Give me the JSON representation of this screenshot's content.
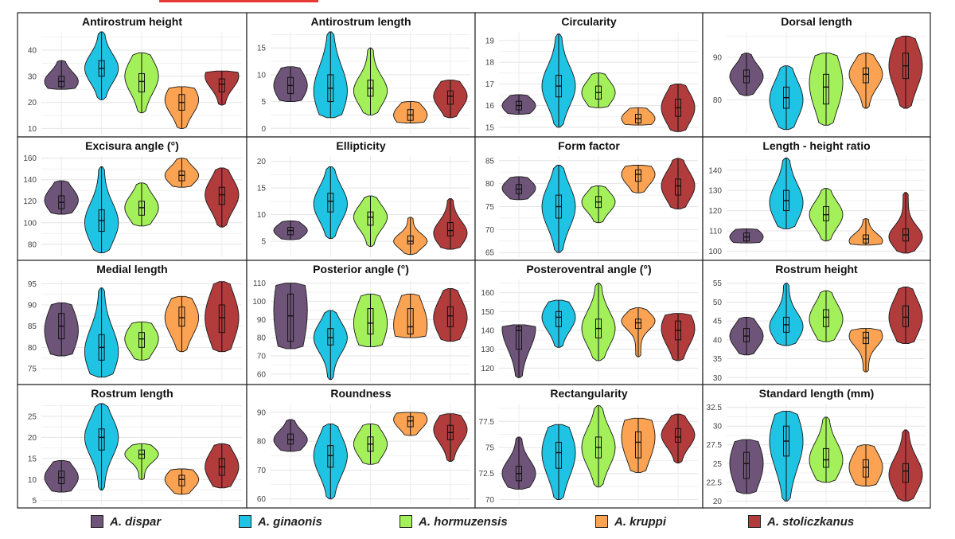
{
  "colors": {
    "A. dispar": "#6e5478",
    "A. ginaonis": "#1fc4e4",
    "A. hormuzensis": "#a3f05a",
    "A. kruppi": "#fba352",
    "A. stoliczkanus": "#b23b3c"
  },
  "legend": [
    {
      "label": "A. dispar",
      "color": "#6e5478"
    },
    {
      "label": "A. ginaonis",
      "color": "#1fc4e4"
    },
    {
      "label": "A. hormuzensis",
      "color": "#a3f05a"
    },
    {
      "label": "A. kruppi",
      "color": "#fba352"
    },
    {
      "label": "A. stoliczkanus",
      "color": "#b23b3c"
    }
  ],
  "chart_data": [
    {
      "type": "violin",
      "title": "Antirostrum height",
      "yticks": [
        10,
        20,
        30,
        40
      ],
      "ylim": [
        8,
        47
      ],
      "series": [
        {
          "name": "A. dispar",
          "min": 25,
          "max": 36,
          "q1": 26,
          "median": 28,
          "q3": 30,
          "mode": 28
        },
        {
          "name": "A. ginaonis",
          "min": 21,
          "max": 47,
          "q1": 30,
          "median": 33,
          "q3": 36,
          "mode": 33
        },
        {
          "name": "A. hormuzensis",
          "min": 16,
          "max": 39,
          "q1": 24,
          "median": 28,
          "q3": 31,
          "mode": 30
        },
        {
          "name": "A. kruppi",
          "min": 10,
          "max": 26,
          "q1": 17,
          "median": 20,
          "q3": 23,
          "mode": 21
        },
        {
          "name": "A. stoliczkanus",
          "min": 19,
          "max": 32,
          "q1": 24,
          "median": 27,
          "q3": 29,
          "mode": 30
        }
      ]
    },
    {
      "type": "violin",
      "title": "Antirostrum length",
      "yticks": [
        0,
        5,
        10,
        15
      ],
      "ylim": [
        -1,
        18
      ],
      "series": [
        {
          "name": "A. dispar",
          "min": 5,
          "max": 11.5,
          "q1": 6.5,
          "median": 8,
          "q3": 9.5,
          "mode": 8
        },
        {
          "name": "A. ginaonis",
          "min": 2,
          "max": 18,
          "q1": 5,
          "median": 7.5,
          "q3": 10,
          "mode": 7
        },
        {
          "name": "A. hormuzensis",
          "min": 2.5,
          "max": 15,
          "q1": 6,
          "median": 7.5,
          "q3": 9,
          "mode": 7
        },
        {
          "name": "A. kruppi",
          "min": 1,
          "max": 5,
          "q1": 1.5,
          "median": 2.5,
          "q3": 3.5,
          "mode": 2.5
        },
        {
          "name": "A. stoliczkanus",
          "min": 2,
          "max": 9,
          "q1": 4.5,
          "median": 6,
          "q3": 7,
          "mode": 6
        }
      ]
    },
    {
      "type": "violin",
      "title": "Circularity",
      "yticks": [
        15,
        16,
        17,
        18,
        19
      ],
      "ylim": [
        14.7,
        19.4
      ],
      "series": [
        {
          "name": "A. dispar",
          "min": 15.6,
          "max": 16.5,
          "q1": 15.8,
          "median": 16,
          "q3": 16.2,
          "mode": 16
        },
        {
          "name": "A. ginaonis",
          "min": 15,
          "max": 19.3,
          "q1": 16.4,
          "median": 16.9,
          "q3": 17.4,
          "mode": 16.9
        },
        {
          "name": "A. hormuzensis",
          "min": 15.9,
          "max": 17.5,
          "q1": 16.3,
          "median": 16.6,
          "q3": 16.9,
          "mode": 16.6
        },
        {
          "name": "A. kruppi",
          "min": 15.1,
          "max": 15.9,
          "q1": 15.2,
          "median": 15.4,
          "q3": 15.6,
          "mode": 15.4
        },
        {
          "name": "A. stoliczkanus",
          "min": 14.8,
          "max": 17,
          "q1": 15.5,
          "median": 15.9,
          "q3": 16.3,
          "mode": 15.9
        }
      ]
    },
    {
      "type": "violin",
      "title": "Dorsal length",
      "yticks": [
        80,
        90
      ],
      "ylim": [
        72,
        96
      ],
      "series": [
        {
          "name": "A. dispar",
          "min": 81,
          "max": 91,
          "q1": 84,
          "median": 85.5,
          "q3": 87,
          "mode": 85.5
        },
        {
          "name": "A. ginaonis",
          "min": 73,
          "max": 88,
          "q1": 78,
          "median": 80.5,
          "q3": 83,
          "mode": 80
        },
        {
          "name": "A. hormuzensis",
          "min": 74,
          "max": 91,
          "q1": 79,
          "median": 83,
          "q3": 86,
          "mode": 84
        },
        {
          "name": "A. kruppi",
          "min": 78,
          "max": 91,
          "q1": 84,
          "median": 86,
          "q3": 87.5,
          "mode": 86
        },
        {
          "name": "A. stoliczkanus",
          "min": 78,
          "max": 95,
          "q1": 85,
          "median": 88,
          "q3": 91,
          "mode": 88
        }
      ]
    },
    {
      "type": "violin",
      "title": "Excisura angle (°)",
      "yticks": [
        80,
        100,
        120,
        140,
        160
      ],
      "ylim": [
        68,
        162
      ],
      "series": [
        {
          "name": "A. dispar",
          "min": 108,
          "max": 139,
          "q1": 113,
          "median": 119,
          "q3": 125,
          "mode": 121
        },
        {
          "name": "A. ginaonis",
          "min": 72,
          "max": 152,
          "q1": 92,
          "median": 102,
          "q3": 112,
          "mode": 100
        },
        {
          "name": "A. hormuzensis",
          "min": 97,
          "max": 137,
          "q1": 107,
          "median": 114,
          "q3": 120,
          "mode": 114
        },
        {
          "name": "A. kruppi",
          "min": 133,
          "max": 160,
          "q1": 139,
          "median": 144,
          "q3": 148,
          "mode": 144
        },
        {
          "name": "A. stoliczkanus",
          "min": 96,
          "max": 151,
          "q1": 117,
          "median": 126,
          "q3": 133,
          "mode": 126
        }
      ]
    },
    {
      "type": "violin",
      "title": "Ellipticity",
      "yticks": [
        5,
        10,
        15,
        20
      ],
      "ylim": [
        2,
        21
      ],
      "series": [
        {
          "name": "A. dispar",
          "min": 5.3,
          "max": 8.8,
          "q1": 6.2,
          "median": 7,
          "q3": 7.6,
          "mode": 7
        },
        {
          "name": "A. ginaonis",
          "min": 5.5,
          "max": 19,
          "q1": 10.5,
          "median": 12.5,
          "q3": 14,
          "mode": 12
        },
        {
          "name": "A. hormuzensis",
          "min": 4,
          "max": 13.5,
          "q1": 8,
          "median": 9.5,
          "q3": 10.5,
          "mode": 9.5
        },
        {
          "name": "A. kruppi",
          "min": 2.5,
          "max": 9.5,
          "q1": 4.5,
          "median": 5,
          "q3": 6,
          "mode": 5
        },
        {
          "name": "A. stoliczkanus",
          "min": 3.5,
          "max": 13,
          "q1": 6,
          "median": 7,
          "q3": 8.5,
          "mode": 6.5
        }
      ]
    },
    {
      "type": "violin",
      "title": "Form factor",
      "yticks": [
        65,
        70,
        75,
        80,
        85
      ],
      "ylim": [
        64,
        86
      ],
      "series": [
        {
          "name": "A. dispar",
          "min": 76.5,
          "max": 81.5,
          "q1": 77.8,
          "median": 78.8,
          "q3": 79.8,
          "mode": 79
        },
        {
          "name": "A. ginaonis",
          "min": 65,
          "max": 84,
          "q1": 72.5,
          "median": 75,
          "q3": 77.5,
          "mode": 75
        },
        {
          "name": "A. hormuzensis",
          "min": 71.5,
          "max": 79.5,
          "q1": 74.8,
          "median": 76,
          "q3": 77.2,
          "mode": 76
        },
        {
          "name": "A. kruppi",
          "min": 78,
          "max": 84,
          "q1": 80.5,
          "median": 82,
          "q3": 83,
          "mode": 82
        },
        {
          "name": "A. stoliczkanus",
          "min": 74.5,
          "max": 85.5,
          "q1": 77.5,
          "median": 79.5,
          "q3": 81,
          "mode": 79.5
        }
      ]
    },
    {
      "type": "violin",
      "title": "Length - height ratio",
      "yticks": [
        100,
        110,
        120,
        130,
        140
      ],
      "ylim": [
        97,
        147
      ],
      "series": [
        {
          "name": "A. dispar",
          "min": 104,
          "max": 111,
          "q1": 105,
          "median": 107,
          "q3": 109,
          "mode": 107
        },
        {
          "name": "A. ginaonis",
          "min": 111,
          "max": 146,
          "q1": 120,
          "median": 125,
          "q3": 130,
          "mode": 124
        },
        {
          "name": "A. hormuzensis",
          "min": 105,
          "max": 131,
          "q1": 115,
          "median": 118,
          "q3": 122,
          "mode": 118
        },
        {
          "name": "A. kruppi",
          "min": 103,
          "max": 116,
          "q1": 104,
          "median": 106,
          "q3": 108,
          "mode": 105
        },
        {
          "name": "A. stoliczkanus",
          "min": 99,
          "max": 129,
          "q1": 105,
          "median": 108,
          "q3": 111,
          "mode": 107
        }
      ]
    },
    {
      "type": "violin",
      "title": "Medial length",
      "yticks": [
        75,
        80,
        85,
        90,
        95
      ],
      "ylim": [
        72,
        96
      ],
      "series": [
        {
          "name": "A. dispar",
          "min": 78,
          "max": 90.5,
          "q1": 82,
          "median": 85,
          "q3": 88,
          "mode": 84
        },
        {
          "name": "A. ginaonis",
          "min": 73,
          "max": 94,
          "q1": 77,
          "median": 80,
          "q3": 83,
          "mode": 79
        },
        {
          "name": "A. hormuzensis",
          "min": 77,
          "max": 86,
          "q1": 80,
          "median": 82,
          "q3": 83.5,
          "mode": 82
        },
        {
          "name": "A. kruppi",
          "min": 79,
          "max": 92,
          "q1": 85,
          "median": 87,
          "q3": 89.5,
          "mode": 87
        },
        {
          "name": "A. stoliczkanus",
          "min": 79,
          "max": 95.5,
          "q1": 83.5,
          "median": 87,
          "q3": 90,
          "mode": 87
        }
      ]
    },
    {
      "type": "violin",
      "title": "Posterior angle (°)",
      "yticks": [
        60,
        70,
        80,
        90,
        100,
        110
      ],
      "ylim": [
        56,
        112
      ],
      "series": [
        {
          "name": "A. dispar",
          "min": 74,
          "max": 110,
          "q1": 78,
          "median": 92,
          "q3": 104,
          "mode": 95
        },
        {
          "name": "A. ginaonis",
          "min": 57,
          "max": 95,
          "q1": 76,
          "median": 80,
          "q3": 85,
          "mode": 80
        },
        {
          "name": "A. hormuzensis",
          "min": 75,
          "max": 104,
          "q1": 82,
          "median": 88,
          "q3": 96,
          "mode": 88
        },
        {
          "name": "A. kruppi",
          "min": 80,
          "max": 104,
          "q1": 82,
          "median": 86,
          "q3": 96,
          "mode": 87
        },
        {
          "name": "A. stoliczkanus",
          "min": 78,
          "max": 107,
          "q1": 86,
          "median": 92,
          "q3": 97,
          "mode": 91
        }
      ]
    },
    {
      "type": "violin",
      "title": "Posteroventral angle (°)",
      "yticks": [
        120,
        130,
        140,
        150,
        160
      ],
      "ylim": [
        113,
        167
      ],
      "series": [
        {
          "name": "A. dispar",
          "min": 115,
          "max": 143,
          "q1": 130,
          "median": 140,
          "q3": 142,
          "mode": 141
        },
        {
          "name": "A. ginaonis",
          "min": 131,
          "max": 156,
          "q1": 142,
          "median": 147,
          "q3": 150,
          "mode": 147
        },
        {
          "name": "A. hormuzensis",
          "min": 124,
          "max": 165,
          "q1": 136,
          "median": 141,
          "q3": 146,
          "mode": 141
        },
        {
          "name": "A. kruppi",
          "min": 126,
          "max": 152,
          "q1": 141,
          "median": 144,
          "q3": 146,
          "mode": 145
        },
        {
          "name": "A. stoliczkanus",
          "min": 124,
          "max": 149,
          "q1": 135,
          "median": 140,
          "q3": 145,
          "mode": 141
        }
      ]
    },
    {
      "type": "violin",
      "title": "Rostrum height",
      "yticks": [
        30,
        35,
        40,
        45,
        50,
        55
      ],
      "ylim": [
        29,
        56
      ],
      "series": [
        {
          "name": "A. dispar",
          "min": 36,
          "max": 46,
          "q1": 39.5,
          "median": 41,
          "q3": 43,
          "mode": 41
        },
        {
          "name": "A. ginaonis",
          "min": 38.5,
          "max": 55,
          "q1": 42,
          "median": 44,
          "q3": 46,
          "mode": 43.5
        },
        {
          "name": "A. hormuzensis",
          "min": 39.5,
          "max": 53,
          "q1": 43.5,
          "median": 46,
          "q3": 48,
          "mode": 45.5
        },
        {
          "name": "A. kruppi",
          "min": 31.5,
          "max": 43,
          "q1": 39,
          "median": 40.5,
          "q3": 42,
          "mode": 41
        },
        {
          "name": "A. stoliczkanus",
          "min": 39,
          "max": 54,
          "q1": 43.5,
          "median": 46,
          "q3": 49,
          "mode": 46
        }
      ]
    },
    {
      "type": "violin",
      "title": "Rostrum length",
      "yticks": [
        5,
        10,
        15,
        20,
        25
      ],
      "ylim": [
        4,
        28
      ],
      "series": [
        {
          "name": "A. dispar",
          "min": 7,
          "max": 14.5,
          "q1": 9,
          "median": 10.5,
          "q3": 12,
          "mode": 10.5
        },
        {
          "name": "A. ginaonis",
          "min": 7.5,
          "max": 28,
          "q1": 17,
          "median": 20,
          "q3": 22,
          "mode": 20
        },
        {
          "name": "A. hormuzensis",
          "min": 10,
          "max": 18.5,
          "q1": 15,
          "median": 16,
          "q3": 17,
          "mode": 16
        },
        {
          "name": "A. kruppi",
          "min": 6.5,
          "max": 12.5,
          "q1": 8.5,
          "median": 10,
          "q3": 11,
          "mode": 10
        },
        {
          "name": "A. stoliczkanus",
          "min": 8,
          "max": 18.5,
          "q1": 11,
          "median": 13,
          "q3": 15,
          "mode": 13
        }
      ]
    },
    {
      "type": "violin",
      "title": "Roundness",
      "yticks": [
        60,
        70,
        80,
        90
      ],
      "ylim": [
        58,
        93
      ],
      "series": [
        {
          "name": "A. dispar",
          "min": 76.5,
          "max": 87.5,
          "q1": 79,
          "median": 80.5,
          "q3": 82.5,
          "mode": 80.5
        },
        {
          "name": "A. ginaonis",
          "min": 60,
          "max": 86,
          "q1": 71,
          "median": 75,
          "q3": 78.5,
          "mode": 75
        },
        {
          "name": "A. hormuzensis",
          "min": 72,
          "max": 86,
          "q1": 76.5,
          "median": 79,
          "q3": 81.5,
          "mode": 79
        },
        {
          "name": "A. kruppi",
          "min": 82,
          "max": 90,
          "q1": 85,
          "median": 87,
          "q3": 88.5,
          "mode": 87.5
        },
        {
          "name": "A. stoliczkanus",
          "min": 73,
          "max": 89.5,
          "q1": 80.5,
          "median": 83,
          "q3": 85.5,
          "mode": 84
        }
      ]
    },
    {
      "type": "violin",
      "title": "Rectangularity",
      "yticks": [
        70.0,
        72.5,
        75.0,
        77.5
      ],
      "ylim": [
        69.5,
        79.2
      ],
      "series": [
        {
          "name": "A. dispar",
          "min": 71,
          "max": 76,
          "q1": 71.8,
          "median": 72.5,
          "q3": 73.2,
          "mode": 72.5
        },
        {
          "name": "A. ginaonis",
          "min": 70,
          "max": 77.2,
          "q1": 73,
          "median": 74.5,
          "q3": 75.5,
          "mode": 74.5
        },
        {
          "name": "A. hormuzensis",
          "min": 71.2,
          "max": 79,
          "q1": 74,
          "median": 75,
          "q3": 76,
          "mode": 75
        },
        {
          "name": "A. kruppi",
          "min": 72.6,
          "max": 77.8,
          "q1": 74,
          "median": 75.5,
          "q3": 76.5,
          "mode": 76
        },
        {
          "name": "A. stoliczkanus",
          "min": 73.5,
          "max": 78.2,
          "q1": 75.5,
          "median": 76,
          "q3": 76.8,
          "mode": 76.2
        }
      ]
    },
    {
      "type": "violin",
      "title": "Standard length (mm)",
      "yticks": [
        20.0,
        22.5,
        25.0,
        27.5,
        30.0,
        32.5
      ],
      "ylim": [
        19.5,
        33
      ],
      "series": [
        {
          "name": "A. dispar",
          "min": 21,
          "max": 28.2,
          "q1": 23,
          "median": 25,
          "q3": 26.5,
          "mode": 25
        },
        {
          "name": "A. ginaonis",
          "min": 20,
          "max": 32,
          "q1": 26,
          "median": 28,
          "q3": 30,
          "mode": 28
        },
        {
          "name": "A. hormuzensis",
          "min": 22.5,
          "max": 31.2,
          "q1": 24.5,
          "median": 25.5,
          "q3": 27,
          "mode": 25.5
        },
        {
          "name": "A. kruppi",
          "min": 22,
          "max": 27.5,
          "q1": 23.2,
          "median": 24.5,
          "q3": 25.5,
          "mode": 24.5
        },
        {
          "name": "A. stoliczkanus",
          "min": 20,
          "max": 29.5,
          "q1": 22.5,
          "median": 24,
          "q3": 25,
          "mode": 23.5
        }
      ]
    }
  ]
}
